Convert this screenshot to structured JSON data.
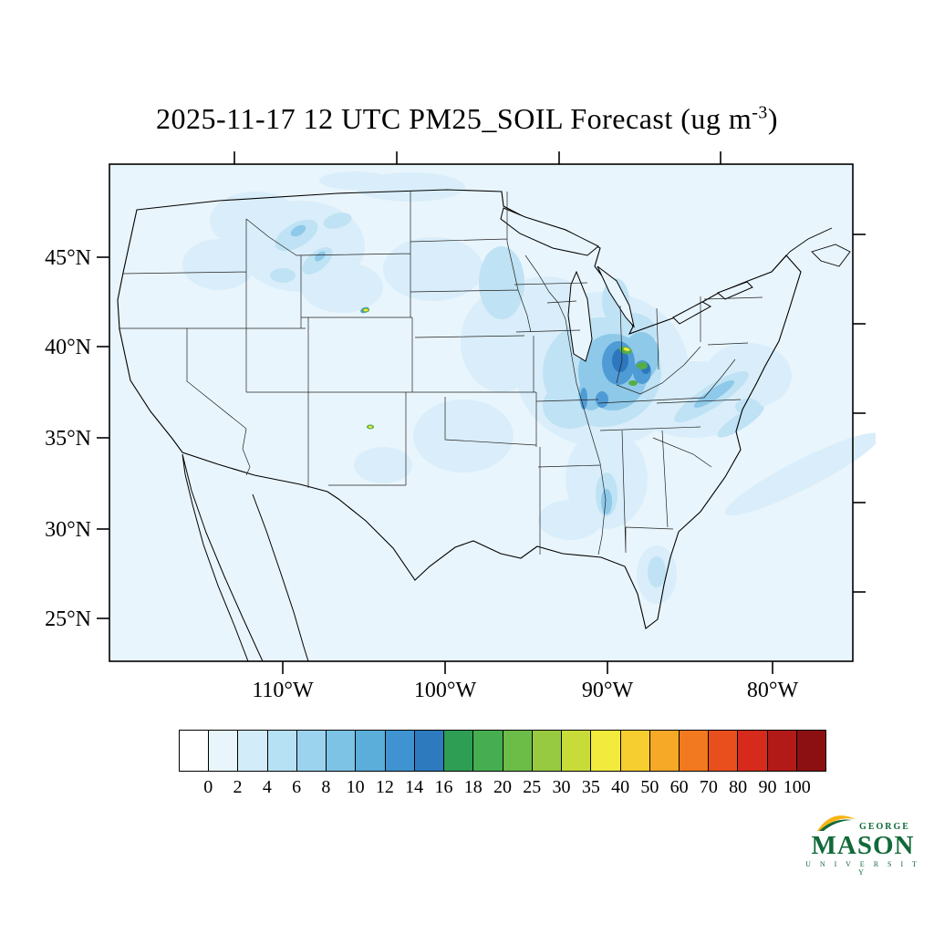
{
  "title": {
    "main": "2025-11-17 12 UTC PM25_SOIL Forecast (ug m",
    "exponent": "-3",
    "suffix": ")"
  },
  "axes": {
    "lat_labels": [
      "45°N",
      "40°N",
      "35°N",
      "30°N",
      "25°N"
    ],
    "lon_labels": [
      "110°W",
      "100°W",
      "90°W",
      "80°W"
    ]
  },
  "colorbar": {
    "labels": [
      "0",
      "2",
      "4",
      "6",
      "8",
      "10",
      "12",
      "14",
      "16",
      "18",
      "20",
      "25",
      "30",
      "35",
      "40",
      "50",
      "60",
      "70",
      "80",
      "90",
      "100"
    ],
    "colors": [
      "#ffffff",
      "#e8f6fc",
      "#d2ecf9",
      "#b6e0f4",
      "#9bd3ee",
      "#7cc3e6",
      "#5badda",
      "#3f93d0",
      "#2d7abf",
      "#2e9e54",
      "#46ae50",
      "#6cbc48",
      "#97ca40",
      "#c8dc39",
      "#f2ea3c",
      "#f6ce2f",
      "#f6a827",
      "#f2791f",
      "#e94f1d",
      "#d62a1c",
      "#b21a17",
      "#8c1012"
    ]
  },
  "logo": {
    "line1": "GEORGE",
    "line2": "MASON",
    "line3": "U N I V E R S I T Y",
    "green": "#116a39",
    "gold": "#f7b516"
  },
  "chart_data": {
    "type": "heatmap",
    "title": "2025-11-17 12 UTC PM25_SOIL Forecast (ug m-3)",
    "variable": "PM25_SOIL",
    "units": "ug m-3",
    "valid_time": "2025-11-17 12 UTC",
    "region": "Continental United States",
    "x_ticks": [
      "110°W",
      "100°W",
      "90°W",
      "80°W"
    ],
    "y_ticks": [
      "45°N",
      "40°N",
      "35°N",
      "30°N",
      "25°N"
    ],
    "levels": [
      0,
      2,
      4,
      6,
      8,
      10,
      12,
      14,
      16,
      18,
      20,
      25,
      30,
      35,
      40,
      50,
      60,
      70,
      80,
      90,
      100
    ],
    "palette": [
      "#ffffff",
      "#e8f6fc",
      "#d2ecf9",
      "#b6e0f4",
      "#9bd3ee",
      "#7cc3e6",
      "#5badda",
      "#3f93d0",
      "#2d7abf",
      "#2e9e54",
      "#46ae50",
      "#6cbc48",
      "#97ca40",
      "#c8dc39",
      "#f2ea3c",
      "#f6ce2f",
      "#f6a827",
      "#f2791f",
      "#e94f1d",
      "#d62a1c",
      "#b21a17",
      "#8c1012"
    ],
    "features": [
      {
        "region": "Illinois / lower Midwest cluster",
        "value_range_ug_m3": "10-30"
      },
      {
        "region": "Idaho / northern Rockies streaks",
        "value_range_ug_m3": "4-12"
      },
      {
        "region": "Central Appalachians band",
        "value_range_ug_m3": "4-8"
      },
      {
        "region": "Western Nebraska small hotspot",
        "value_range_ug_m3": "20-30"
      },
      {
        "region": "Northeastern New Mexico small hotspot",
        "value_range_ug_m3": "20-30"
      },
      {
        "region": "Lower Mississippi valley spots",
        "value_range_ug_m3": "4-10"
      },
      {
        "region": "Central Florida spot",
        "value_range_ug_m3": "4-8"
      },
      {
        "region": "Offshore Atlantic band",
        "value_range_ug_m3": "2-4"
      },
      {
        "region": "Most of CONUS background",
        "value_range_ug_m3": "0-4"
      }
    ]
  }
}
